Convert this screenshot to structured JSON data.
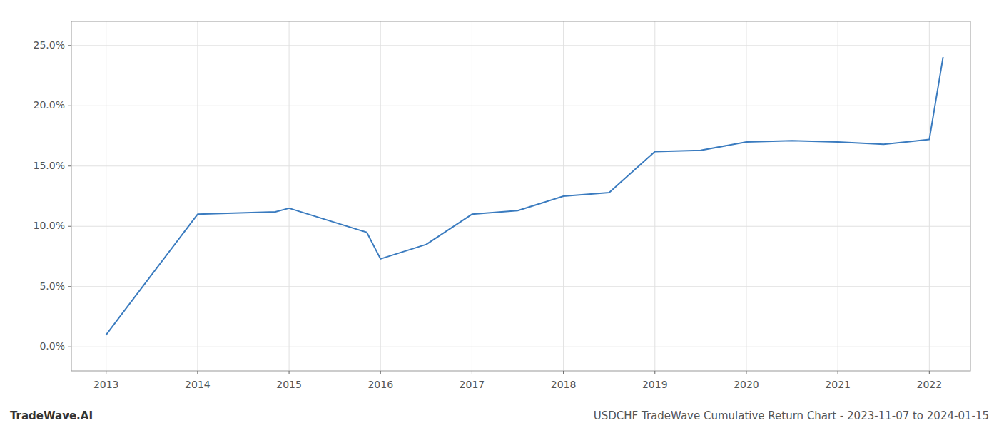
{
  "chart_data": {
    "type": "line",
    "x": [
      2013.0,
      2013.15,
      2014.0,
      2014.85,
      2015.0,
      2015.85,
      2016.0,
      2016.5,
      2017.0,
      2017.5,
      2018.0,
      2018.5,
      2019.0,
      2019.5,
      2020.0,
      2020.5,
      2021.0,
      2021.5,
      2022.0,
      2022.15
    ],
    "values": [
      0.01,
      0.025,
      0.11,
      0.112,
      0.115,
      0.095,
      0.073,
      0.085,
      0.11,
      0.113,
      0.125,
      0.128,
      0.162,
      0.163,
      0.17,
      0.171,
      0.17,
      0.168,
      0.172,
      0.24
    ],
    "color": "#3a7bbf",
    "xlim": [
      2012.62,
      2022.45
    ],
    "ylim": [
      -0.02,
      0.27
    ],
    "xticks": [
      2013,
      2014,
      2015,
      2016,
      2017,
      2018,
      2019,
      2020,
      2021,
      2022
    ],
    "yticks": [
      {
        "value": 0.0,
        "label": "0.0%"
      },
      {
        "value": 0.05,
        "label": "5.0%"
      },
      {
        "value": 0.1,
        "label": "10.0%"
      },
      {
        "value": 0.15,
        "label": "15.0%"
      },
      {
        "value": 0.2,
        "label": "20.0%"
      },
      {
        "value": 0.25,
        "label": "25.0%"
      }
    ],
    "grid": true,
    "annotations": [
      "TradeWave.AI",
      "USDCHF TradeWave Cumulative Return Chart - 2023-11-07 to 2024-01-15"
    ]
  }
}
